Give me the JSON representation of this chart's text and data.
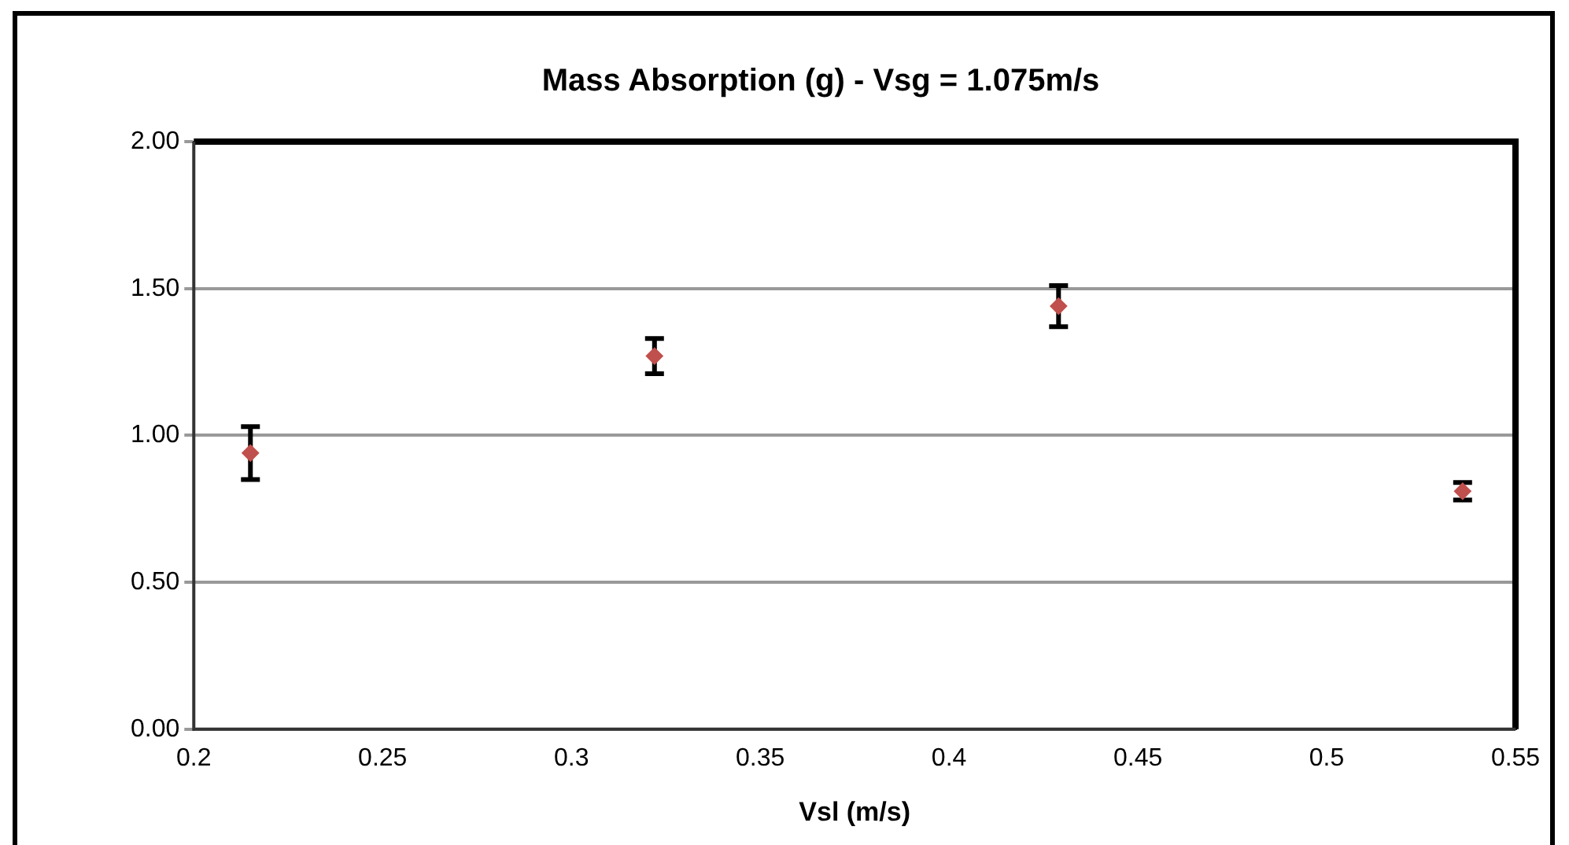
{
  "chart_data": {
    "type": "scatter",
    "title": "Mass Absorption (g) - Vsg = 1.075m/s",
    "xlabel": "Vsl (m/s)",
    "x": [
      0.215,
      0.322,
      0.429,
      0.536
    ],
    "series": [
      {
        "color": "#c0504d",
        "values": [
          0.94,
          1.27,
          1.44,
          0.81
        ],
        "errors": [
          0.09,
          0.06,
          0.07,
          0.03
        ]
      }
    ],
    "xlim": [
      0.2,
      0.55
    ],
    "xticks": [
      0.2,
      0.25,
      0.3,
      0.35,
      0.4,
      0.45,
      0.5,
      0.55
    ],
    "ylim": [
      0,
      2
    ],
    "yticks": [
      {
        "value": 0,
        "label": "0.00"
      },
      {
        "value": 0.5,
        "label": "0.50"
      },
      {
        "value": 1,
        "label": "1.00"
      },
      {
        "value": 1.5,
        "label": "1.50"
      },
      {
        "value": 2,
        "label": "2.00"
      }
    ],
    "grid": "y",
    "legend": false,
    "marker": "diamond"
  }
}
